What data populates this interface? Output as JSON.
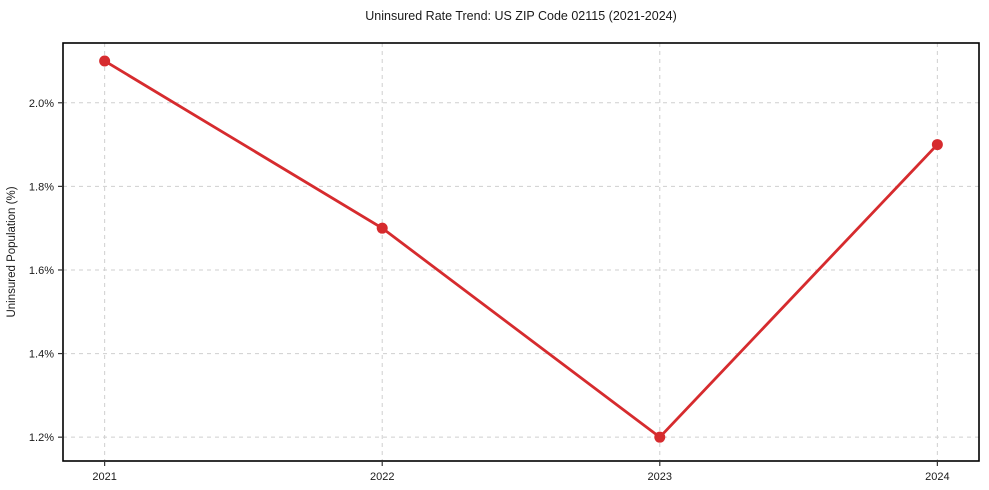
{
  "chart_data": {
    "type": "line",
    "title": "Uninsured Rate Trend: US ZIP Code 02115 (2021-2024)",
    "xlabel": "",
    "ylabel": "Uninsured Population (%)",
    "x": [
      2021,
      2022,
      2023,
      2024
    ],
    "values": [
      2.1,
      1.7,
      1.2,
      1.9
    ],
    "x_tick_labels": [
      "2021",
      "2022",
      "2023",
      "2024"
    ],
    "y_ticks": [
      1.2,
      1.4,
      1.6,
      1.8,
      2.0
    ],
    "y_tick_labels": [
      "1.2%",
      "1.4%",
      "1.6%",
      "1.8%",
      "2.0%"
    ],
    "xlim": [
      2020.85,
      2024.15
    ],
    "ylim": [
      1.143,
      2.143
    ],
    "grid": true,
    "legend": "none",
    "line_color": "#d62b2e",
    "marker_color": "#d62b2e",
    "grid_color": "#cfcfcf",
    "spine_color": "#000000",
    "tick_color": "#333333",
    "background_color": "#ffffff"
  }
}
